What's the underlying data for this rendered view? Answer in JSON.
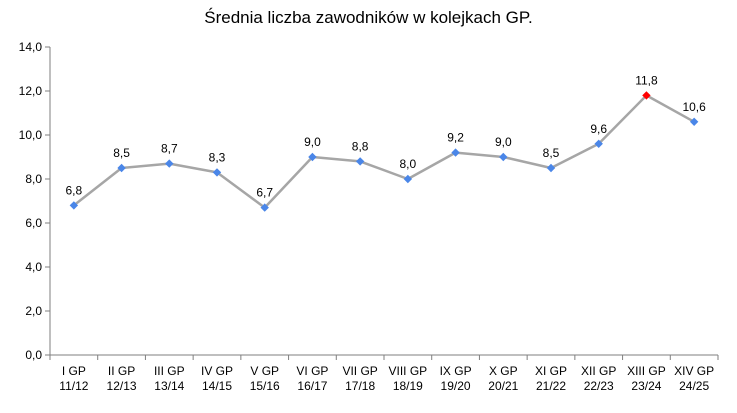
{
  "chart_data": {
    "type": "line",
    "title": "Średnia liczba zawodników w kolejkach GP.",
    "xlabel": "",
    "ylabel": "",
    "ylim": [
      0,
      14
    ],
    "yticks": [
      "0,0",
      "2,0",
      "4,0",
      "6,0",
      "8,0",
      "10,0",
      "12,0",
      "14,0"
    ],
    "grid": false,
    "legend": "none",
    "categories": [
      [
        "I GP",
        "11/12"
      ],
      [
        "II GP",
        "12/13"
      ],
      [
        "III GP",
        "13/14"
      ],
      [
        "IV GP",
        "14/15"
      ],
      [
        "V GP",
        "15/16"
      ],
      [
        "VI GP",
        "16/17"
      ],
      [
        "VII GP",
        "17/18"
      ],
      [
        "VIII GP",
        "18/19"
      ],
      [
        "IX GP",
        "19/20"
      ],
      [
        "X GP",
        "20/21"
      ],
      [
        "XI GP",
        "21/22"
      ],
      [
        "XII GP",
        "22/23"
      ],
      [
        "XIII GP",
        "23/24"
      ],
      [
        "XIV GP",
        "24/25"
      ]
    ],
    "series": [
      {
        "values": [
          6.8,
          8.5,
          8.7,
          8.3,
          6.7,
          9.0,
          8.8,
          8.0,
          9.2,
          9.0,
          8.5,
          9.6,
          11.8,
          10.6
        ],
        "labels": [
          "6,8",
          "8,5",
          "8,7",
          "8,3",
          "6,7",
          "9,0",
          "8,8",
          "8,0",
          "9,2",
          "9,0",
          "8,5",
          "9,6",
          "11,8",
          "10,6"
        ],
        "line_color": "#a6a6a6",
        "marker_color": "#4a86e8",
        "highlight_index": 12,
        "highlight_color": "#ff0000"
      }
    ]
  }
}
